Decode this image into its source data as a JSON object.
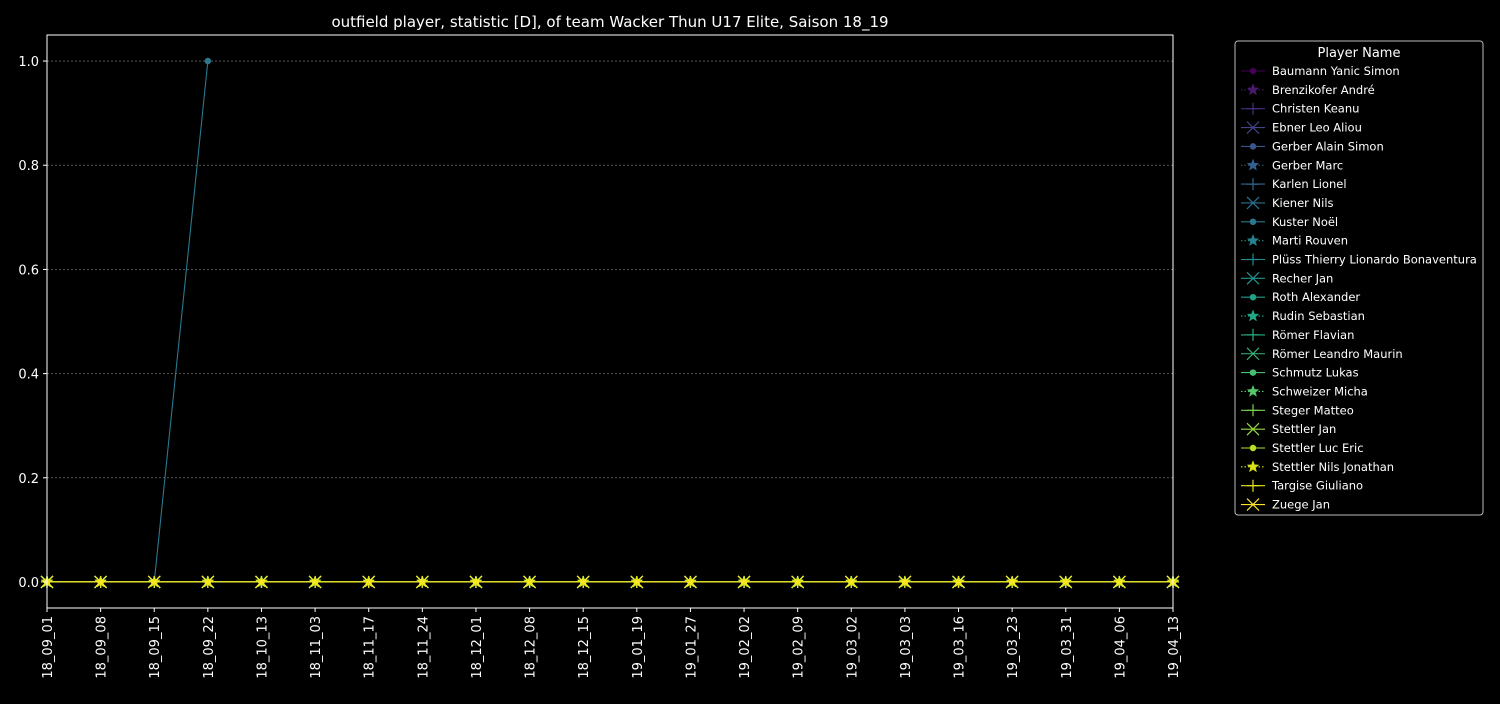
{
  "chart_data": {
    "type": "line",
    "title": "outfield player, statistic [D], of team Wacker Thun U17 Elite, Saison 18_19",
    "xlabel": "",
    "ylabel": "",
    "x": [
      "18_09_01",
      "18_09_08",
      "18_09_15",
      "18_09_22",
      "18_10_13",
      "18_11_03",
      "18_11_17",
      "18_11_24",
      "18_12_01",
      "18_12_08",
      "18_12_15",
      "19_01_19",
      "19_01_27",
      "19_02_02",
      "19_02_09",
      "19_03_02",
      "19_03_03",
      "19_03_16",
      "19_03_23",
      "19_03_31",
      "19_04_06",
      "19_04_13"
    ],
    "ylim": [
      -0.05,
      1.05
    ],
    "yticks": [
      0.0,
      0.2,
      0.4,
      0.6,
      0.8,
      1.0
    ],
    "ytick_labels": [
      "0.0",
      "0.2",
      "0.4",
      "0.6",
      "0.8",
      "1.0"
    ],
    "grid": "y-dotted",
    "legend": {
      "title": "Player Name",
      "placement": "outside-right"
    },
    "series": [
      {
        "name": "Baumann Yanic Simon",
        "color": "#440154",
        "marker": "circle",
        "dash": "solid",
        "values": [
          0,
          0,
          0,
          0,
          0,
          0,
          0,
          0,
          0,
          0,
          0,
          0,
          0,
          0,
          0,
          0,
          0,
          0,
          0,
          0,
          0,
          0
        ]
      },
      {
        "name": "Brenzikofer André",
        "color": "#481a6c",
        "marker": "star",
        "dash": "dotted",
        "values": [
          0,
          0,
          0,
          0,
          0,
          0,
          0,
          0,
          0,
          0,
          0,
          0,
          0,
          0,
          0,
          0,
          0,
          0,
          0,
          0,
          0,
          0
        ]
      },
      {
        "name": "Christen Keanu",
        "color": "#472f7d",
        "marker": "plus",
        "dash": "solid",
        "values": [
          0,
          0,
          0,
          0,
          0,
          0,
          0,
          0,
          0,
          0,
          0,
          0,
          0,
          0,
          0,
          0,
          0,
          0,
          0,
          0,
          0,
          0
        ]
      },
      {
        "name": "Ebner Leo Aliou",
        "color": "#414487",
        "marker": "x",
        "dash": "solid",
        "values": [
          0,
          0,
          0,
          0,
          0,
          0,
          0,
          0,
          0,
          0,
          0,
          0,
          0,
          0,
          0,
          0,
          0,
          0,
          0,
          0,
          0,
          0
        ]
      },
      {
        "name": "Gerber Alain Simon",
        "color": "#39568c",
        "marker": "circle",
        "dash": "solid",
        "values": [
          0,
          0,
          0,
          0,
          0,
          0,
          0,
          0,
          0,
          0,
          0,
          0,
          0,
          0,
          0,
          0,
          0,
          0,
          0,
          0,
          0,
          0
        ]
      },
      {
        "name": "Gerber Marc",
        "color": "#35608d",
        "marker": "star",
        "dash": "dotted",
        "values": [
          0,
          0,
          0,
          0,
          0,
          0,
          0,
          0,
          0,
          0,
          0,
          0,
          0,
          0,
          0,
          0,
          0,
          0,
          0,
          0,
          0,
          0
        ]
      },
      {
        "name": "Karlen Lionel",
        "color": "#31688e",
        "marker": "plus",
        "dash": "solid",
        "values": [
          0,
          0,
          0,
          0,
          0,
          0,
          0,
          0,
          0,
          0,
          0,
          0,
          0,
          0,
          0,
          0,
          0,
          0,
          0,
          0,
          0,
          0
        ]
      },
      {
        "name": "Kiener Nils",
        "color": "#2d708e",
        "marker": "x",
        "dash": "solid",
        "values": [
          0,
          0,
          0,
          0,
          0,
          0,
          0,
          0,
          0,
          0,
          0,
          0,
          0,
          0,
          0,
          0,
          0,
          0,
          0,
          0,
          0,
          0
        ]
      },
      {
        "name": "Kuster Noël",
        "color": "#2a788e",
        "marker": "circle",
        "dash": "solid",
        "values": [
          0,
          0,
          0,
          1,
          null,
          null,
          null,
          null,
          null,
          null,
          null,
          null,
          null,
          null,
          null,
          null,
          null,
          null,
          null,
          null,
          null,
          null
        ]
      },
      {
        "name": "Marti Rouven",
        "color": "#26828e",
        "marker": "star",
        "dash": "dotted",
        "values": [
          0,
          0,
          0,
          0,
          0,
          0,
          0,
          0,
          0,
          0,
          0,
          0,
          0,
          0,
          0,
          0,
          0,
          0,
          0,
          0,
          0,
          0
        ]
      },
      {
        "name": "Plüss Thierry Lionardo Bonaventura",
        "color": "#228b8d",
        "marker": "plus",
        "dash": "solid",
        "values": [
          0,
          0,
          0,
          0,
          0,
          0,
          0,
          0,
          0,
          0,
          0,
          0,
          0,
          0,
          0,
          0,
          0,
          0,
          0,
          0,
          0,
          0
        ]
      },
      {
        "name": "Recher Jan",
        "color": "#1f968b",
        "marker": "x",
        "dash": "solid",
        "values": [
          0,
          0,
          0,
          0,
          0,
          0,
          0,
          0,
          0,
          0,
          0,
          0,
          0,
          0,
          0,
          0,
          0,
          0,
          0,
          0,
          0,
          0
        ]
      },
      {
        "name": "Roth Alexander",
        "color": "#1fa088",
        "marker": "circle",
        "dash": "solid",
        "values": [
          0,
          0,
          0,
          0,
          0,
          0,
          0,
          0,
          0,
          0,
          0,
          0,
          0,
          0,
          0,
          0,
          0,
          0,
          0,
          0,
          0,
          0
        ]
      },
      {
        "name": "Rudin Sebastian",
        "color": "#22a884",
        "marker": "star",
        "dash": "dotted",
        "values": [
          0,
          0,
          0,
          0,
          0,
          0,
          0,
          0,
          0,
          0,
          0,
          0,
          0,
          0,
          0,
          0,
          0,
          0,
          0,
          0,
          0,
          0
        ]
      },
      {
        "name": "Römer Flavian",
        "color": "#29af7f",
        "marker": "plus",
        "dash": "solid",
        "values": [
          0,
          0,
          0,
          0,
          0,
          0,
          0,
          0,
          0,
          0,
          0,
          0,
          0,
          0,
          0,
          0,
          0,
          0,
          0,
          0,
          0,
          0
        ]
      },
      {
        "name": "Römer Leandro Maurin",
        "color": "#35b779",
        "marker": "x",
        "dash": "solid",
        "values": [
          0,
          0,
          0,
          0,
          0,
          0,
          0,
          0,
          0,
          0,
          0,
          0,
          0,
          0,
          0,
          0,
          0,
          0,
          0,
          0,
          0,
          0
        ]
      },
      {
        "name": "Schmutz Lukas",
        "color": "#43bf71",
        "marker": "circle",
        "dash": "solid",
        "values": [
          0,
          0,
          0,
          0,
          0,
          0,
          0,
          0,
          0,
          0,
          0,
          0,
          0,
          0,
          0,
          0,
          0,
          0,
          0,
          0,
          0,
          0
        ]
      },
      {
        "name": "Schweizer Micha",
        "color": "#54c568",
        "marker": "star",
        "dash": "dotted",
        "values": [
          0,
          0,
          0,
          0,
          0,
          0,
          0,
          0,
          0,
          0,
          0,
          0,
          0,
          0,
          0,
          0,
          0,
          0,
          0,
          0,
          0,
          0
        ]
      },
      {
        "name": "Steger Matteo",
        "color": "#7ad151",
        "marker": "plus",
        "dash": "solid",
        "values": [
          0,
          0,
          0,
          0,
          0,
          0,
          0,
          0,
          0,
          0,
          0,
          0,
          0,
          0,
          0,
          0,
          0,
          0,
          0,
          0,
          0,
          0
        ]
      },
      {
        "name": "Stettler Jan",
        "color": "#95d840",
        "marker": "x",
        "dash": "solid",
        "values": [
          0,
          0,
          0,
          0,
          0,
          0,
          0,
          0,
          0,
          0,
          0,
          0,
          0,
          0,
          0,
          0,
          0,
          0,
          0,
          0,
          0,
          0
        ]
      },
      {
        "name": "Stettler Luc Eric",
        "color": "#b8de29",
        "marker": "circle",
        "dash": "solid",
        "values": [
          0,
          0,
          0,
          0,
          0,
          0,
          0,
          0,
          0,
          0,
          0,
          0,
          0,
          0,
          0,
          0,
          0,
          0,
          0,
          0,
          0,
          0
        ]
      },
      {
        "name": "Stettler Nils Jonathan",
        "color": "#d8e219",
        "marker": "star",
        "dash": "dotted",
        "values": [
          0,
          0,
          0,
          0,
          0,
          0,
          0,
          0,
          0,
          0,
          0,
          0,
          0,
          0,
          0,
          0,
          0,
          0,
          0,
          0,
          0,
          0
        ]
      },
      {
        "name": "Targise Giuliano",
        "color": "#e8e419",
        "marker": "plus",
        "dash": "solid",
        "values": [
          0,
          0,
          0,
          0,
          0,
          0,
          0,
          0,
          0,
          0,
          0,
          0,
          0,
          0,
          0,
          0,
          0,
          0,
          0,
          0,
          0,
          0
        ]
      },
      {
        "name": "Zuege Jan",
        "color": "#fde725",
        "marker": "x",
        "dash": "solid",
        "values": [
          0,
          0,
          0,
          0,
          0,
          0,
          0,
          0,
          0,
          0,
          0,
          0,
          0,
          0,
          0,
          0,
          0,
          0,
          0,
          0,
          0,
          0
        ]
      }
    ]
  }
}
